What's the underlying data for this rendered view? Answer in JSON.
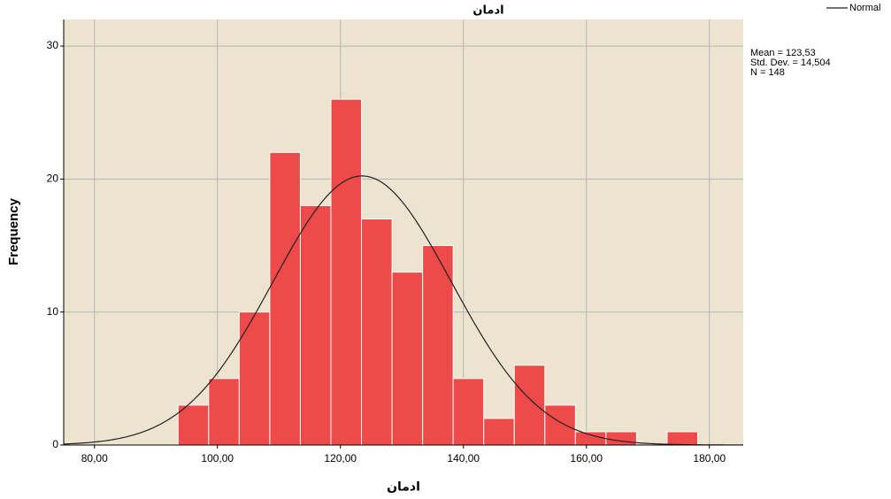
{
  "chart_data": {
    "type": "histogram",
    "title": "ادمان",
    "x_label": "ادمان",
    "y_label": "Frequency",
    "bins": [
      93.6,
      98.57,
      103.54,
      108.51,
      113.48,
      118.45,
      123.42,
      128.39,
      133.36,
      138.33,
      143.3,
      148.27,
      153.24,
      158.21,
      163.18,
      168.15,
      173.12,
      178.09
    ],
    "values": [
      3,
      5,
      10,
      22,
      18,
      26,
      17,
      13,
      15,
      5,
      2,
      6,
      3,
      1,
      1,
      0,
      1
    ],
    "color": "#ee4a4a",
    "xlim": [
      75,
      185.5
    ],
    "ylim": [
      0,
      32
    ],
    "xticks": [
      {
        "value": 80,
        "label": "80,00"
      },
      {
        "value": 100,
        "label": "100,00"
      },
      {
        "value": 120,
        "label": "120,00"
      },
      {
        "value": 140,
        "label": "140,00"
      },
      {
        "value": 160,
        "label": "160,00"
      },
      {
        "value": 180,
        "label": "180,00"
      }
    ],
    "yticks": [
      0,
      10,
      20,
      30
    ],
    "grid": true,
    "legend": "top-right",
    "curve": {
      "name": "Normal",
      "color": "#222222"
    },
    "stats": [
      {
        "value": 123.53,
        "label": "Mean = 123,53"
      },
      {
        "value": 14.504,
        "label": "Std. Dev. = 14,504"
      },
      {
        "value": 148,
        "label": "N = 148"
      }
    ]
  }
}
